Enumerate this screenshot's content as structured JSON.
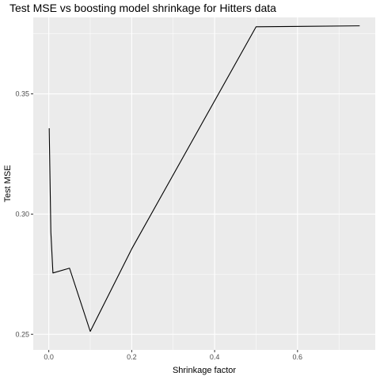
{
  "chart_data": {
    "type": "line",
    "title": "Test MSE vs boosting model shrinkage for Hitters data",
    "xlabel": "Shrinkage factor",
    "ylabel": "Test MSE",
    "xlim": [
      -0.0375,
      0.7875
    ],
    "ylim": [
      0.2435,
      0.3818
    ],
    "x_ticks": [
      0.0,
      0.2,
      0.4,
      0.6
    ],
    "x_tick_labels": [
      "0.0",
      "0.2",
      "0.4",
      "0.6"
    ],
    "y_ticks": [
      0.25,
      0.3,
      0.35
    ],
    "y_tick_labels": [
      "0.25",
      "0.30",
      "0.35"
    ],
    "grid": true,
    "background": "#ebebeb",
    "grid_major_color": "#ffffff",
    "line_color": "#000000",
    "series": [
      {
        "x": [
          0.001,
          0.005,
          0.01,
          0.05,
          0.1,
          0.2,
          0.5,
          0.75
        ],
        "y": [
          0.3357,
          0.2925,
          0.2755,
          0.2775,
          0.2512,
          0.2855,
          0.3779,
          0.3783
        ]
      }
    ]
  }
}
